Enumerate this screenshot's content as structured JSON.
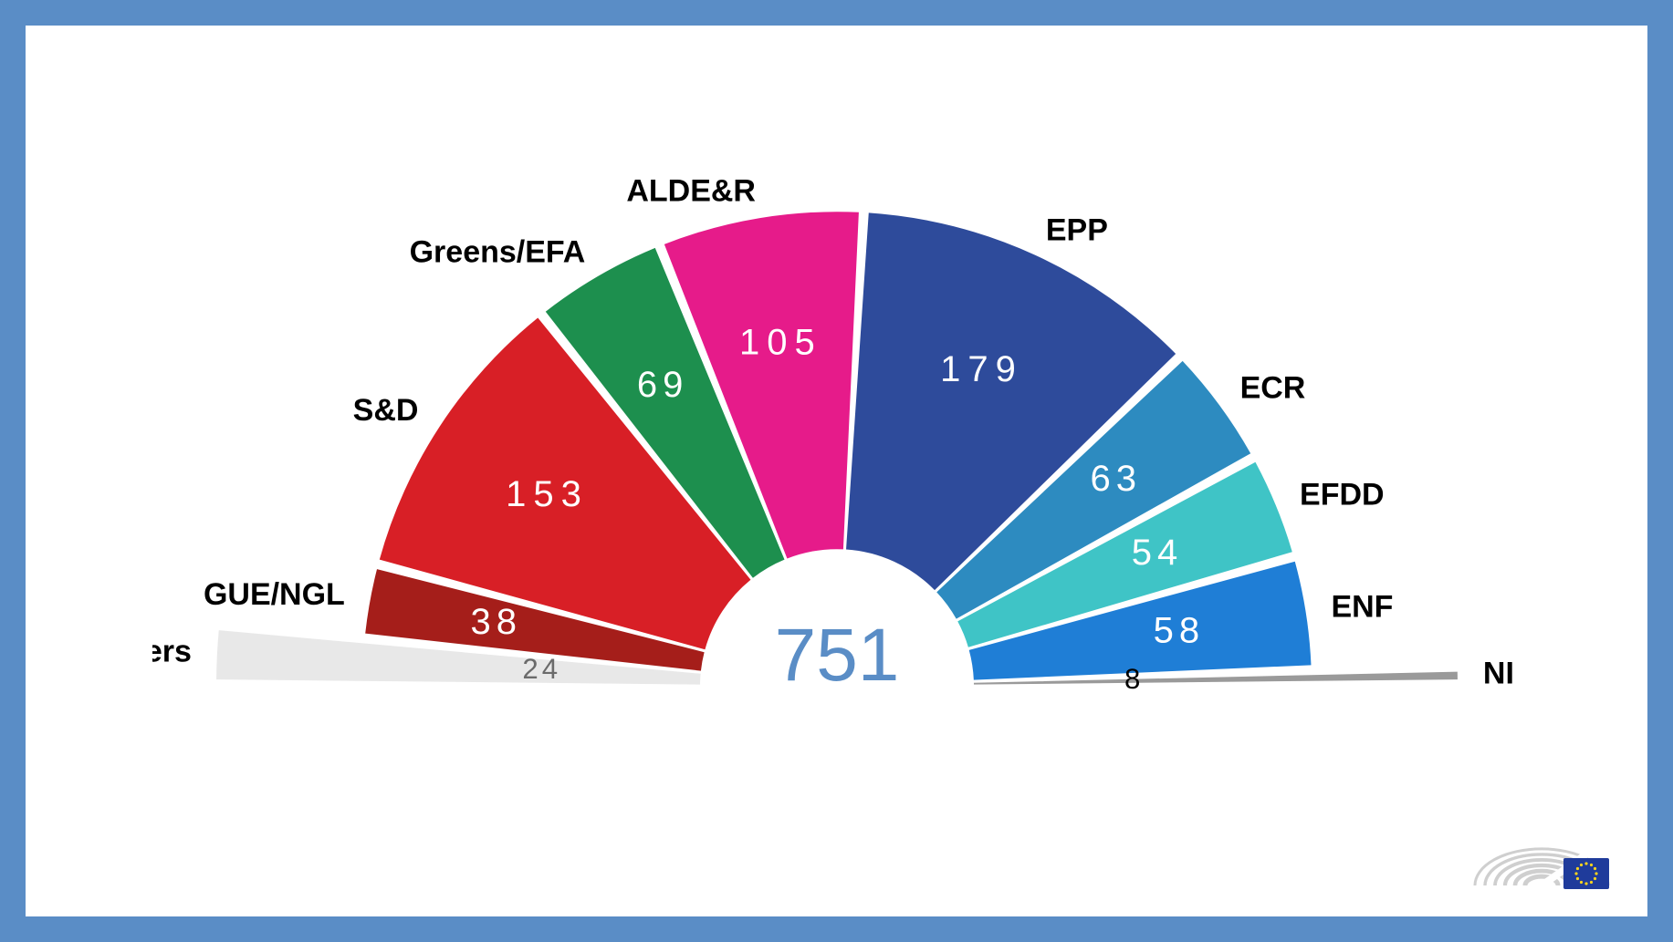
{
  "chart": {
    "type": "semicircle",
    "total": 751,
    "total_color": "#5a8dc6",
    "total_fontsize": 82,
    "outer_radius": 520,
    "inner_radius": 150,
    "gap_deg": 1.2,
    "background": "#ffffff",
    "border_color": "#5a8dc6",
    "label_fontsize": 34,
    "value_fontsize": 40,
    "slices": [
      {
        "name": "Others",
        "value": 24,
        "color": "#e8e8e8",
        "value_color": "#6b6b6b",
        "value_letterspacing": 4,
        "label_anchor": "end",
        "full_width": true
      },
      {
        "name": "GUE/NGL",
        "value": 38,
        "color": "#a51e1a",
        "value_color": "#ffffff",
        "value_letterspacing": 6,
        "label_anchor": "end"
      },
      {
        "name": "S&D",
        "value": 153,
        "color": "#d81f26",
        "value_color": "#ffffff",
        "value_letterspacing": 8,
        "label_anchor": "end"
      },
      {
        "name": "Greens/EFA",
        "value": 69,
        "color": "#1d8f4e",
        "value_color": "#ffffff",
        "value_letterspacing": 6,
        "label_anchor": "end"
      },
      {
        "name": "ALDE&R",
        "value": 105,
        "color": "#e61b8a",
        "value_color": "#ffffff",
        "value_letterspacing": 8,
        "label_anchor": "end"
      },
      {
        "name": "EPP",
        "value": 179,
        "color": "#2e4b9b",
        "value_color": "#ffffff",
        "value_letterspacing": 8,
        "label_anchor": "start"
      },
      {
        "name": "ECR",
        "value": 63,
        "color": "#2d8bc0",
        "value_color": "#ffffff",
        "value_letterspacing": 6,
        "label_anchor": "start"
      },
      {
        "name": "EFDD",
        "value": 54,
        "color": "#3fc4c6",
        "value_color": "#ffffff",
        "value_letterspacing": 6,
        "label_anchor": "start"
      },
      {
        "name": "ENF",
        "value": 58,
        "color": "#1f7ed6",
        "value_color": "#ffffff",
        "value_letterspacing": 6,
        "label_anchor": "start"
      },
      {
        "name": "NI",
        "value": 8,
        "color": "#9a9a9a",
        "value_color": "#000000",
        "value_letterspacing": 0,
        "label_anchor": "start",
        "full_width": true
      }
    ]
  },
  "logo": {
    "arc_color": "#cfcfcf",
    "flag_bg": "#1f3b9b",
    "star_color": "#f6d21f"
  }
}
